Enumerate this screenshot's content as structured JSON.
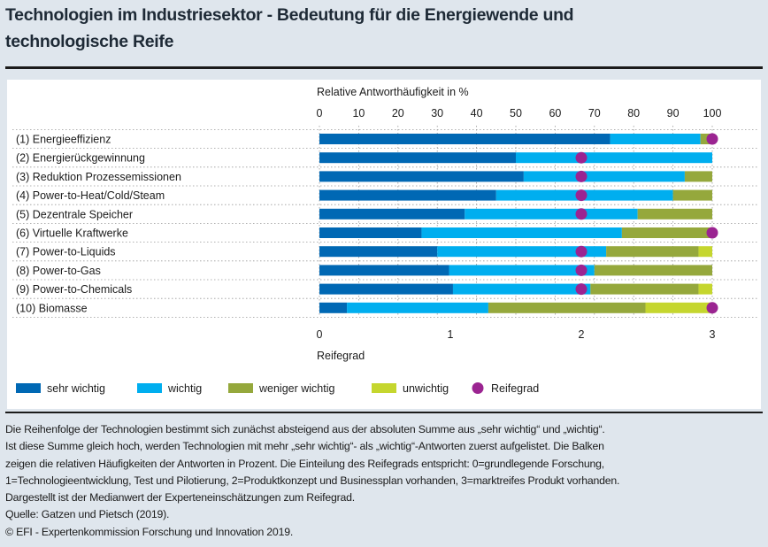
{
  "title": {
    "line1": "Technologien im Industriesektor - Bedeutung für die Energiewende und",
    "line2": "technologische Reife"
  },
  "chart_data": {
    "type": "bar",
    "stacked": true,
    "orientation": "horizontal",
    "top_axis": {
      "label": "Relative Antworthäufigkeit in %",
      "range": [
        0,
        100
      ],
      "ticks": [
        0,
        10,
        20,
        30,
        40,
        50,
        60,
        70,
        80,
        90,
        100
      ]
    },
    "bottom_axis": {
      "label": "Reifegrad",
      "range": [
        0,
        3
      ],
      "ticks": [
        0,
        1,
        2,
        3
      ]
    },
    "grid": true,
    "categories": [
      "(1) Energieeffizienz",
      "(2) Energierückgewinnung",
      "(3) Reduktion Prozessemissionen",
      "(4) Power-to-Heat/Cold/Steam",
      "(5) Dezentrale Speicher",
      "(6) Virtuelle Kraftwerke",
      "(7) Power-to-Liquids",
      "(8) Power-to-Gas",
      "(9) Power-to-Chemicals",
      "(10) Biomasse"
    ],
    "series": [
      {
        "name": "sehr wichtig",
        "color": "#0068b4",
        "values": [
          74,
          50,
          52,
          45,
          37,
          26,
          30,
          33,
          34,
          7
        ]
      },
      {
        "name": "wichtig",
        "color": "#00aeef",
        "values": [
          23,
          50,
          41,
          45,
          44,
          51,
          43,
          37,
          35,
          36
        ]
      },
      {
        "name": "weniger wichtig",
        "color": "#95a83c",
        "values": [
          3,
          0,
          7,
          10,
          19,
          23,
          23.5,
          30,
          27.5,
          40
        ]
      },
      {
        "name": "unwichtig",
        "color": "#c5d62e",
        "values": [
          0,
          0,
          0,
          0,
          0,
          0,
          3.5,
          0,
          3.5,
          17
        ]
      }
    ],
    "markers": {
      "name": "Reifegrad",
      "color": "#9b2491",
      "values": [
        3,
        2,
        2,
        2,
        2,
        3,
        2,
        2,
        2,
        3
      ]
    },
    "legend_position": "bottom"
  },
  "footnote": [
    "Die Reihenfolge der Technologien bestimmt sich zunächst absteigend aus der absoluten Summe aus „sehr wichtig“ und „wichtig“.",
    "Ist diese Summe gleich hoch, werden Technologien mit mehr „sehr wichtig“- als „wichtig“-Antworten zuerst aufgelistet. Die Balken",
    "zeigen die relativen Häufigkeiten der Antworten in Prozent. Die Einteilung des Reifegrads entspricht: 0=grundlegende Forschung,",
    "1=Technologieentwicklung, Test und Pilotierung, 2=Produktkonzept und Businessplan vorhanden, 3=marktreifes Produkt vorhanden.",
    "Dargestellt ist der Medianwert der Experteneinschätzungen zum Reifegrad.",
    "Quelle: Gatzen und Pietsch (2019).",
    "© EFI - Expertenkommission Forschung und Innovation 2019."
  ]
}
